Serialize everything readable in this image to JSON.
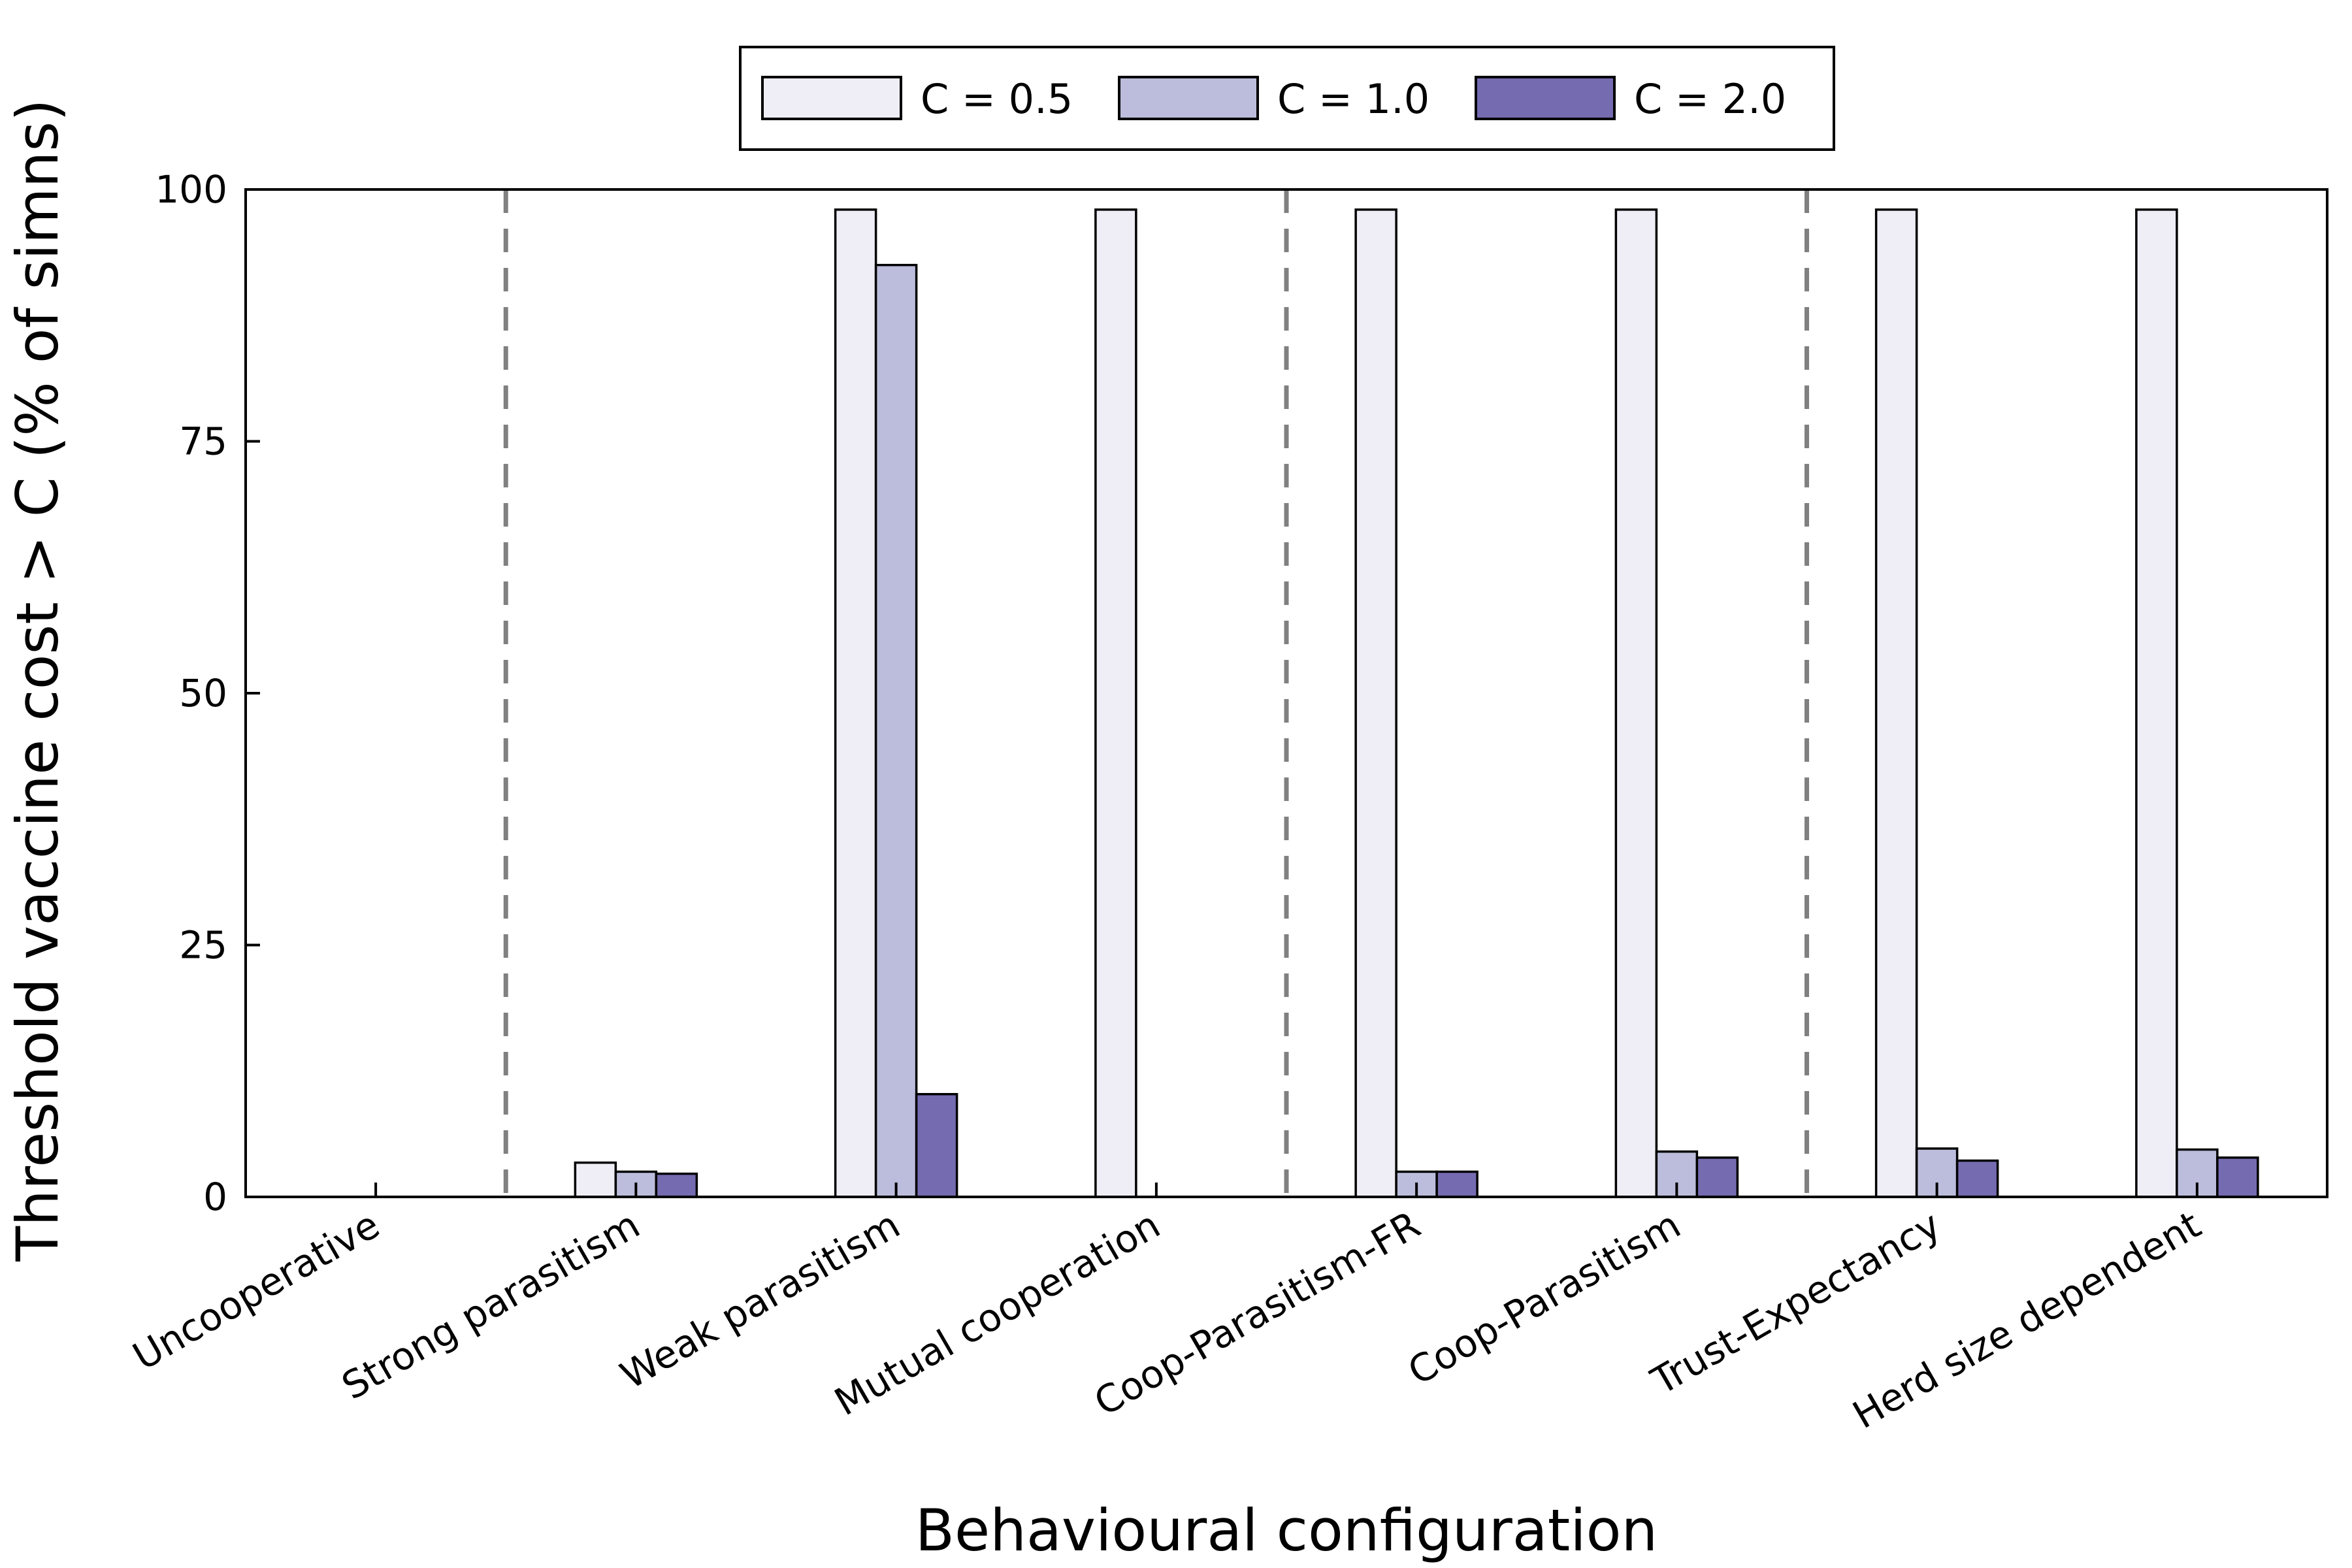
{
  "chart_data": {
    "type": "bar",
    "xlabel": "Behavioural configuration",
    "ylabel": "Threshold vaccine cost > C (% of simns)",
    "ylim": [
      0,
      100
    ],
    "yticks": [
      0,
      25,
      50,
      75,
      100
    ],
    "grid": false,
    "legend_position": "top-center",
    "categories": [
      "Uncooperative",
      "Strong parasitism",
      "Weak parasitism",
      "Mutual cooperation",
      "Coop-Parasitism-FR",
      "Coop-Parasitism",
      "Trust-Expectancy",
      "Herd size dependent"
    ],
    "series": [
      {
        "name": "C = 0.5",
        "color": "#efedf5",
        "values": [
          0,
          3.4,
          98,
          98,
          98,
          98,
          98,
          98
        ]
      },
      {
        "name": "C = 1.0",
        "color": "#bcbddc",
        "values": [
          0,
          2.5,
          92.5,
          0,
          2.5,
          4.5,
          4.8,
          4.7
        ]
      },
      {
        "name": "C = 2.0",
        "color": "#756bb1",
        "values": [
          0,
          2.3,
          10.2,
          0,
          2.5,
          3.9,
          3.6,
          3.9
        ]
      }
    ],
    "group_dividers_after": [
      0,
      3,
      5
    ]
  }
}
